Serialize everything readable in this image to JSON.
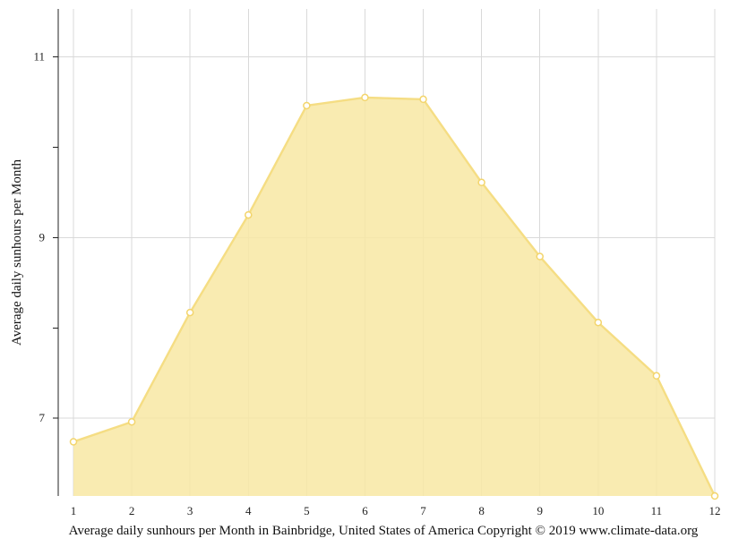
{
  "chart_data": {
    "type": "area",
    "title": "",
    "caption": "Average daily sunhours per Month in Bainbridge, United States of America Copyright © 2019 www.climate-data.org",
    "xlabel": "",
    "ylabel": "Average daily sunhours per Month",
    "x": [
      1,
      2,
      3,
      4,
      5,
      6,
      7,
      8,
      9,
      10,
      11,
      12
    ],
    "x_tick_labels": [
      "1",
      "2",
      "3",
      "4",
      "5",
      "6",
      "7",
      "8",
      "9",
      "10",
      "11",
      "12"
    ],
    "series": [
      {
        "name": "",
        "values": [
          6.74,
          6.96,
          8.17,
          9.25,
          10.46,
          10.55,
          10.53,
          9.61,
          8.79,
          8.06,
          7.47,
          6.14
        ]
      }
    ],
    "yticks": [
      7,
      9,
      11
    ],
    "y_tick_labels": [
      "7",
      "9",
      "11"
    ],
    "ylim": [
      6.14,
      11.53
    ],
    "grid": true,
    "colors": {
      "area_fill": "#f8e7a3",
      "line": "#f5dd83",
      "marker_fill": "#ffffff",
      "marker_stroke": "#f3d56d",
      "grid": "#d9d9d9",
      "axis": "#222222",
      "text": "#111111"
    }
  }
}
